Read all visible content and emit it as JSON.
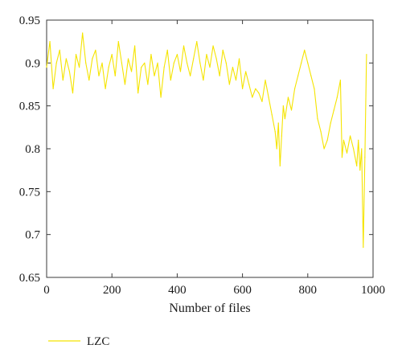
{
  "chart_data": {
    "type": "line",
    "title": "",
    "xlabel": "Number of files",
    "ylabel": "",
    "xlim": [
      0,
      1000
    ],
    "ylim": [
      0.65,
      0.95
    ],
    "x_ticks": [
      "0",
      "200",
      "400",
      "600",
      "800",
      "1000"
    ],
    "y_ticks": [
      "0.95",
      "0.9",
      "0.85",
      "0.8",
      "0.75",
      "0.7",
      "0.65"
    ],
    "grid": false,
    "legend_position": "bottom-left, outside plot",
    "series": [
      {
        "name": "LZC",
        "color": "#f5e400",
        "x": [
          0,
          10,
          20,
          30,
          40,
          50,
          60,
          70,
          80,
          90,
          100,
          110,
          120,
          130,
          140,
          150,
          160,
          170,
          180,
          190,
          200,
          210,
          220,
          230,
          240,
          250,
          260,
          270,
          280,
          290,
          300,
          310,
          320,
          330,
          340,
          350,
          360,
          370,
          380,
          390,
          400,
          410,
          420,
          430,
          440,
          450,
          460,
          470,
          480,
          490,
          500,
          510,
          520,
          530,
          540,
          550,
          560,
          570,
          580,
          590,
          600,
          610,
          620,
          630,
          640,
          650,
          660,
          670,
          680,
          690,
          700,
          705,
          710,
          715,
          720,
          725,
          730,
          740,
          750,
          760,
          770,
          780,
          790,
          800,
          810,
          820,
          830,
          840,
          850,
          860,
          870,
          880,
          890,
          900,
          905,
          910,
          920,
          930,
          940,
          950,
          955,
          960,
          965,
          970,
          975,
          980
        ],
        "y": [
          0.895,
          0.925,
          0.87,
          0.9,
          0.915,
          0.88,
          0.905,
          0.89,
          0.865,
          0.91,
          0.895,
          0.935,
          0.9,
          0.88,
          0.905,
          0.915,
          0.885,
          0.9,
          0.87,
          0.895,
          0.91,
          0.885,
          0.925,
          0.9,
          0.875,
          0.905,
          0.89,
          0.92,
          0.865,
          0.895,
          0.9,
          0.875,
          0.91,
          0.885,
          0.9,
          0.86,
          0.895,
          0.915,
          0.88,
          0.9,
          0.91,
          0.89,
          0.92,
          0.9,
          0.885,
          0.905,
          0.925,
          0.9,
          0.88,
          0.91,
          0.895,
          0.92,
          0.905,
          0.885,
          0.915,
          0.9,
          0.875,
          0.895,
          0.88,
          0.905,
          0.87,
          0.89,
          0.875,
          0.86,
          0.87,
          0.865,
          0.855,
          0.88,
          0.86,
          0.84,
          0.82,
          0.8,
          0.83,
          0.78,
          0.815,
          0.85,
          0.835,
          0.86,
          0.845,
          0.87,
          0.885,
          0.9,
          0.915,
          0.9,
          0.885,
          0.87,
          0.835,
          0.82,
          0.8,
          0.81,
          0.83,
          0.845,
          0.86,
          0.88,
          0.79,
          0.81,
          0.795,
          0.815,
          0.8,
          0.78,
          0.81,
          0.775,
          0.8,
          0.685,
          0.79,
          0.91
        ]
      }
    ]
  }
}
